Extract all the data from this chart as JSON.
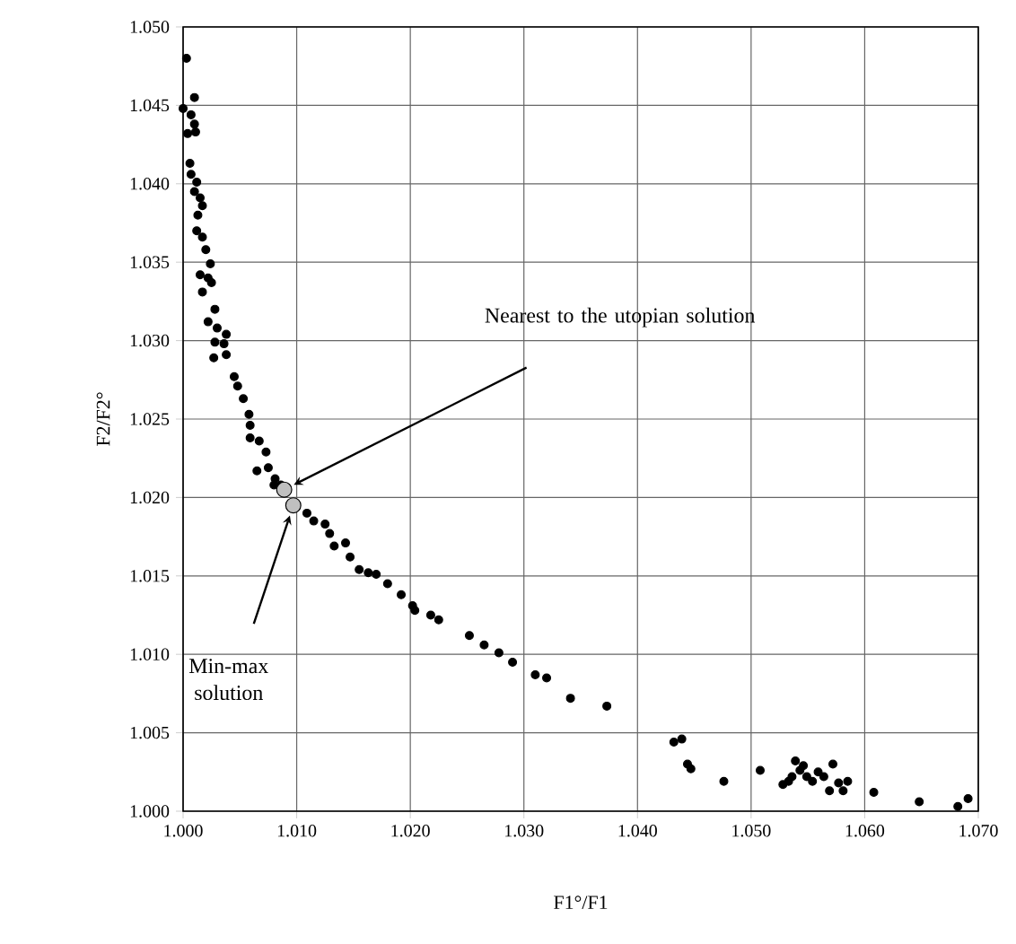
{
  "chart_data": {
    "type": "scatter",
    "xlabel": "F1°/F1",
    "ylabel": "F2/F2°",
    "xlim": [
      1.0,
      1.07
    ],
    "ylim": [
      1.0,
      1.05
    ],
    "xticks": [
      {
        "value": 1.0,
        "label": "1.000"
      },
      {
        "value": 1.01,
        "label": "1.010"
      },
      {
        "value": 1.02,
        "label": "1.020"
      },
      {
        "value": 1.03,
        "label": "1.030"
      },
      {
        "value": 1.04,
        "label": "1.040"
      },
      {
        "value": 1.05,
        "label": "1.050"
      },
      {
        "value": 1.06,
        "label": "1.060"
      },
      {
        "value": 1.07,
        "label": "1.070"
      }
    ],
    "yticks": [
      {
        "value": 1.0,
        "label": "1.000"
      },
      {
        "value": 1.005,
        "label": "1.005"
      },
      {
        "value": 1.01,
        "label": "1.010"
      },
      {
        "value": 1.015,
        "label": "1.015"
      },
      {
        "value": 1.02,
        "label": "1.020"
      },
      {
        "value": 1.025,
        "label": "1.025"
      },
      {
        "value": 1.03,
        "label": "1.030"
      },
      {
        "value": 1.035,
        "label": "1.035"
      },
      {
        "value": 1.04,
        "label": "1.040"
      },
      {
        "value": 1.045,
        "label": "1.045"
      },
      {
        "value": 1.05,
        "label": "1.050"
      }
    ],
    "grid": true,
    "marker": "circle",
    "series": [
      {
        "color": "#000000",
        "x": [
          1.0003,
          1.0,
          1.001,
          1.0007,
          1.001,
          1.0004,
          1.0011,
          1.0006,
          1.0007,
          1.0012,
          1.001,
          1.0015,
          1.0017,
          1.0013,
          1.0012,
          1.0017,
          1.002,
          1.0024,
          1.0015,
          1.0022,
          1.0025,
          1.0017,
          1.0028,
          1.0022,
          1.003,
          1.0038,
          1.0028,
          1.0036,
          1.0038,
          1.0027,
          1.0045,
          1.0048,
          1.0053,
          1.0058,
          1.0059,
          1.0059,
          1.0067,
          1.0073,
          1.0065,
          1.0075,
          1.0081,
          1.0086,
          1.008,
          1.0109,
          1.0115,
          1.0125,
          1.0129,
          1.0133,
          1.0143,
          1.0147,
          1.0155,
          1.0163,
          1.017,
          1.018,
          1.0192,
          1.0202,
          1.0204,
          1.0218,
          1.0225,
          1.0252,
          1.0265,
          1.0278,
          1.029,
          1.031,
          1.032,
          1.0341,
          1.0373,
          1.0432,
          1.0439,
          1.0444,
          1.0447,
          1.0476,
          1.0508,
          1.0528,
          1.0533,
          1.0539,
          1.0543,
          1.0549,
          1.0554,
          1.0559,
          1.0564,
          1.0572,
          1.0569,
          1.0577,
          1.0581,
          1.0585,
          1.0608,
          1.0648,
          1.0682,
          1.0691,
          1.0536,
          1.0546
        ],
        "values": [
          1.048,
          1.0448,
          1.0455,
          1.0444,
          1.0438,
          1.0432,
          1.0433,
          1.0413,
          1.0406,
          1.0401,
          1.0395,
          1.0391,
          1.0386,
          1.038,
          1.037,
          1.0366,
          1.0358,
          1.0349,
          1.0342,
          1.034,
          1.0337,
          1.0331,
          1.032,
          1.0312,
          1.0308,
          1.0304,
          1.0299,
          1.0298,
          1.0291,
          1.0289,
          1.0277,
          1.0271,
          1.0263,
          1.0253,
          1.0246,
          1.0238,
          1.0236,
          1.0229,
          1.0217,
          1.0219,
          1.0212,
          1.0208,
          1.0208,
          1.019,
          1.0185,
          1.0183,
          1.0177,
          1.0169,
          1.0171,
          1.0162,
          1.0154,
          1.0152,
          1.0151,
          1.0145,
          1.0138,
          1.0131,
          1.0128,
          1.0125,
          1.0122,
          1.0112,
          1.0106,
          1.0101,
          1.0095,
          1.0087,
          1.0085,
          1.0072,
          1.0067,
          1.0044,
          1.0046,
          1.003,
          1.0027,
          1.0019,
          1.0026,
          1.0017,
          1.0019,
          1.0032,
          1.0026,
          1.0022,
          1.0019,
          1.0025,
          1.0022,
          1.003,
          1.0013,
          1.0018,
          1.0013,
          1.0019,
          1.0012,
          1.0006,
          1.0003,
          1.0008,
          1.0022,
          1.0029
        ]
      },
      {
        "color": "#c0c0c0",
        "x": [
          1.0089,
          1.0097
        ],
        "values": [
          1.0205,
          1.0195
        ]
      }
    ],
    "annotations": [
      "Nearest to the utopian solution",
      "Min-max solution"
    ]
  }
}
